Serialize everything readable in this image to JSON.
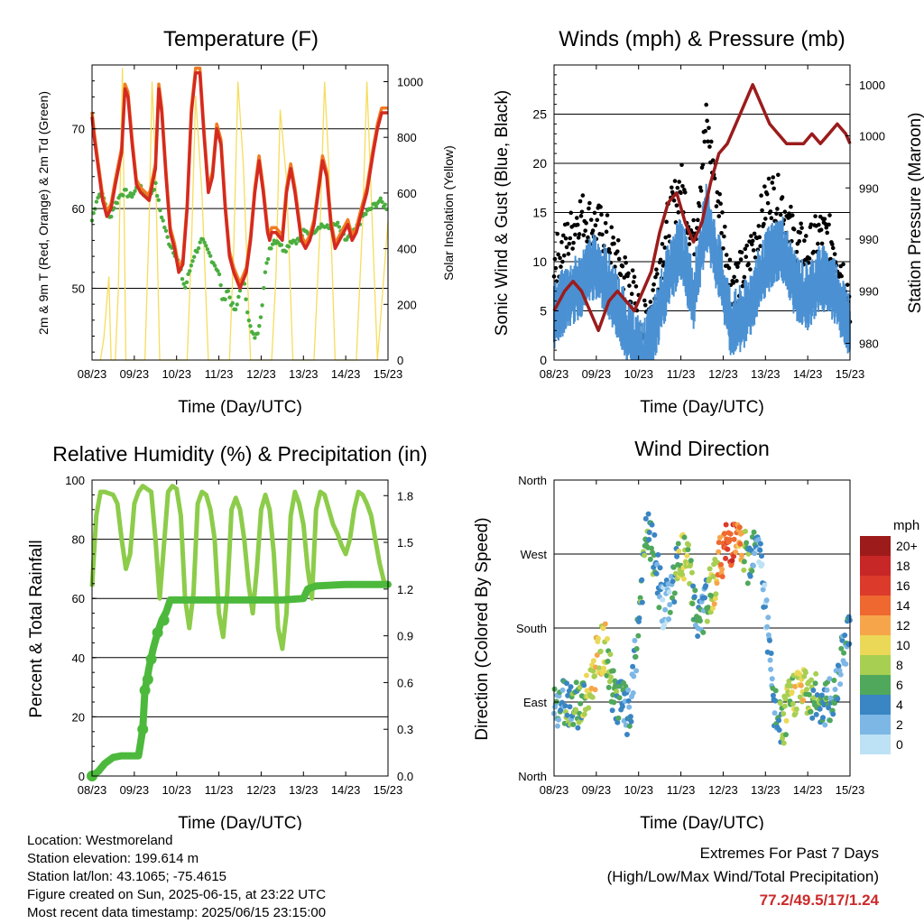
{
  "colors": {
    "temp2m": "#d42a20",
    "temp9m": "#f07c22",
    "dewpoint": "#4aae3f",
    "solar": "#f6dd5c",
    "wind": "#4b91d3",
    "gust": "#000000",
    "pressure": "#9b1c1c",
    "rh": "#8ccc4a",
    "precip": "#4cb93c"
  },
  "chart_data": [
    {
      "id": "temperature",
      "type": "line",
      "title": "Temperature (F)",
      "xlabel": "Time (Day/UTC)",
      "ylabel": "2m & 9m T (Red, Orange) & 2m Td (Green)",
      "y2label": "Solar Insolation (Yellow)",
      "x_ticks": [
        "08/23",
        "09/23",
        "10/23",
        "11/23",
        "12/23",
        "13/23",
        "14/23",
        "15/23"
      ],
      "y_ticks": [
        50,
        60,
        70
      ],
      "ylim": [
        41,
        78
      ],
      "y2_ticks": [
        0,
        200,
        400,
        600,
        800,
        1000
      ],
      "y2lim": [
        0,
        1060
      ],
      "grid": "horizontal",
      "series": [
        {
          "key": "temp2m",
          "x": [
            0,
            0.05,
            0.15,
            0.25,
            0.35,
            0.45,
            0.55,
            0.7,
            0.78,
            0.85,
            0.95,
            1.05,
            1.15,
            1.25,
            1.35,
            1.5,
            1.58,
            1.65,
            1.75,
            1.85,
            1.95,
            2.05,
            2.15,
            2.25,
            2.35,
            2.45,
            2.55,
            2.65,
            2.75,
            2.85,
            2.95,
            3.05,
            3.15,
            3.25,
            3.35,
            3.5,
            3.65,
            3.75,
            3.85,
            3.95,
            4.05,
            4.15,
            4.2,
            4.25,
            4.35,
            4.5,
            4.6,
            4.7,
            4.8,
            4.95,
            5.05,
            5.15,
            5.25,
            5.35,
            5.45,
            5.55,
            5.65,
            5.75,
            5.85,
            5.95,
            6.05,
            6.15,
            6.25,
            6.35,
            6.5,
            6.65,
            6.75,
            6.85,
            6.95,
            7.0
          ],
          "values": [
            71.5,
            69,
            65,
            61,
            59,
            60,
            63,
            67,
            75,
            74,
            68,
            63,
            62,
            61.5,
            61,
            65,
            75,
            72,
            64,
            57,
            55,
            52,
            53,
            60,
            72,
            77,
            77,
            69,
            62,
            64,
            70,
            68,
            60,
            54,
            52,
            50,
            52,
            56,
            62,
            66,
            62,
            57,
            56,
            57,
            57,
            56,
            62,
            65,
            62,
            56,
            55,
            56,
            58,
            62,
            66,
            64,
            58,
            55,
            56,
            57,
            58,
            56,
            57,
            59,
            62,
            67,
            70,
            72,
            72,
            72
          ]
        },
        {
          "key": "dewpoint",
          "x": [
            0,
            0.1,
            0.2,
            0.3,
            0.4,
            0.5,
            0.6,
            0.7,
            0.8,
            0.9,
            1.0,
            1.1,
            1.2,
            1.3,
            1.4,
            1.5,
            1.6,
            1.7,
            1.8,
            1.9,
            2.0,
            2.1,
            2.2,
            2.3,
            2.4,
            2.5,
            2.6,
            2.7,
            2.8,
            2.9,
            3.0,
            3.1,
            3.2,
            3.3,
            3.4,
            3.5,
            3.6,
            3.7,
            3.8,
            3.9,
            4.0,
            4.1,
            4.2,
            4.3,
            4.4,
            4.5,
            4.6,
            4.7,
            4.8,
            4.9,
            5.0,
            5.2,
            5.4,
            5.6,
            5.8,
            6.0,
            6.2,
            6.4,
            6.6,
            6.8,
            7.0
          ],
          "values": [
            58.5,
            61,
            62,
            61,
            58.5,
            60,
            61,
            62,
            62,
            61.5,
            62,
            63,
            62,
            61.5,
            62,
            63,
            60,
            58,
            56,
            55,
            54,
            52,
            50,
            52,
            54,
            55,
            56,
            55,
            54,
            53,
            52,
            48,
            50,
            48,
            47,
            50,
            51,
            46,
            44,
            44,
            47,
            52,
            55,
            56,
            56,
            55,
            55,
            56,
            56,
            56,
            57,
            57,
            58,
            57.5,
            58,
            56,
            57,
            59,
            60,
            61,
            60
          ]
        },
        {
          "key": "solar",
          "x": [
            0.05,
            0.2,
            0.28,
            0.4,
            0.45,
            0.55,
            0.62,
            0.7,
            0.72,
            0.8,
            0.9,
            1.05,
            1.25,
            1.35,
            1.42,
            1.5,
            1.6,
            1.75,
            2.05,
            2.25,
            2.35,
            2.45,
            2.6,
            2.75,
            3.05,
            3.25,
            3.35,
            3.45,
            3.58,
            3.75,
            4.05,
            4.25,
            4.35,
            4.45,
            4.6,
            4.75,
            5.05,
            5.25,
            5.4,
            5.5,
            5.6,
            5.75,
            6.05,
            6.25,
            6.4,
            6.5,
            6.6,
            6.75,
            7.0
          ],
          "values": [
            0,
            0,
            80,
            300,
            0,
            0,
            250,
            900,
            1050,
            0,
            0,
            0,
            0,
            500,
            1000,
            700,
            0,
            0,
            0,
            0,
            400,
            950,
            600,
            0,
            0,
            0,
            400,
            1000,
            700,
            0,
            0,
            0,
            300,
            900,
            650,
            0,
            0,
            0,
            500,
            1000,
            700,
            0,
            0,
            0,
            500,
            1000,
            600,
            0,
            500
          ]
        }
      ]
    },
    {
      "id": "winds",
      "type": "scatter",
      "title": "Winds (mph) & Pressure (mb)",
      "xlabel": "Time (Day/UTC)",
      "ylabel": "Sonic Wind & Gust (Blue, Black)",
      "y2label": "Station Pressure (Maroon)",
      "x_ticks": [
        "08/23",
        "09/23",
        "10/23",
        "11/23",
        "12/23",
        "13/23",
        "14/23",
        "15/23"
      ],
      "y_ticks": [
        0,
        5,
        10,
        15,
        20,
        25
      ],
      "ylim": [
        0,
        30
      ],
      "y2_tick_labels": [
        "980",
        "990",
        "990",
        "990",
        "1000",
        "1000"
      ],
      "y2_tick_y": [
        1.7,
        7.0,
        12.3,
        17.5,
        22.8,
        28.0
      ],
      "grid": "horizontal",
      "series": [
        {
          "key": "wind",
          "name": "Sonic Wind",
          "x": [
            0,
            0.3,
            0.6,
            0.9,
            1.2,
            1.5,
            1.8,
            2.1,
            2.4,
            2.7,
            3.0,
            3.3,
            3.6,
            3.9,
            4.2,
            4.5,
            4.8,
            5.1,
            5.4,
            5.7,
            6.0,
            6.3,
            6.6,
            6.9,
            7.0
          ],
          "values": [
            5,
            7,
            8,
            10,
            9,
            6,
            3,
            1,
            4,
            9,
            12,
            7,
            15,
            10,
            4,
            5,
            8,
            11,
            12,
            8,
            7,
            9,
            8,
            5,
            4
          ]
        },
        {
          "key": "gust",
          "name": "Gust",
          "x": [
            0,
            0.3,
            0.6,
            0.9,
            1.2,
            1.5,
            1.8,
            2.1,
            2.4,
            2.7,
            3.0,
            3.3,
            3.6,
            3.9,
            4.2,
            4.5,
            4.8,
            5.1,
            5.4,
            5.7,
            6.0,
            6.3,
            6.6,
            6.9,
            7.0
          ],
          "values": [
            10,
            12,
            15,
            14,
            13,
            10,
            8,
            3,
            8,
            14,
            18,
            12,
            24,
            16,
            8,
            9,
            13,
            17,
            16,
            12,
            11,
            13,
            12,
            8,
            6
          ]
        },
        {
          "key": "pressure",
          "name": "Station Pressure",
          "x": [
            0,
            0.25,
            0.45,
            0.65,
            0.85,
            1.05,
            1.3,
            1.5,
            1.7,
            1.9,
            2.1,
            2.3,
            2.5,
            2.7,
            2.9,
            3.1,
            3.3,
            3.5,
            3.7,
            3.9,
            4.1,
            4.3,
            4.5,
            4.7,
            4.9,
            5.1,
            5.3,
            5.5,
            5.7,
            5.9,
            6.1,
            6.3,
            6.5,
            6.7,
            6.9,
            7.0
          ],
          "values": [
            5,
            7,
            8,
            7,
            5,
            3,
            6,
            7,
            6,
            5,
            7,
            9,
            13,
            16,
            17,
            14,
            12,
            14,
            18,
            21,
            22,
            24,
            26,
            28,
            26,
            24,
            23,
            22,
            22,
            22,
            23,
            22,
            23,
            24,
            23,
            22
          ]
        }
      ]
    },
    {
      "id": "humidity",
      "type": "line",
      "title": "Relative Humidity (%) & Precipitation (in)",
      "xlabel": "Time (Day/UTC)",
      "ylabel": "Percent & Total Rainfall",
      "x_ticks": [
        "08/23",
        "09/23",
        "10/23",
        "11/23",
        "12/23",
        "13/23",
        "14/23",
        "15/23"
      ],
      "y_ticks": [
        0,
        20,
        40,
        60,
        80,
        100
      ],
      "ylim": [
        0,
        100
      ],
      "y2_ticks": [
        "0.0",
        "0.3",
        "0.6",
        "0.9",
        "1.2",
        "1.5",
        "1.8"
      ],
      "y2lim": [
        0,
        1.9
      ],
      "grid": "horizontal",
      "series": [
        {
          "key": "rh",
          "name": "Relative Humidity",
          "x": [
            0,
            0.1,
            0.2,
            0.3,
            0.5,
            0.6,
            0.7,
            0.8,
            0.9,
            1.0,
            1.1,
            1.2,
            1.3,
            1.4,
            1.5,
            1.6,
            1.7,
            1.8,
            1.9,
            2.0,
            2.1,
            2.2,
            2.3,
            2.4,
            2.5,
            2.6,
            2.7,
            2.8,
            2.9,
            3.0,
            3.1,
            3.2,
            3.3,
            3.4,
            3.5,
            3.6,
            3.7,
            3.8,
            3.9,
            4.0,
            4.1,
            4.2,
            4.3,
            4.4,
            4.5,
            4.6,
            4.7,
            4.8,
            4.9,
            5.0,
            5.1,
            5.2,
            5.3,
            5.4,
            5.5,
            5.6,
            5.7,
            5.8,
            5.9,
            6.0,
            6.1,
            6.2,
            6.3,
            6.4,
            6.5,
            6.6,
            6.7,
            6.8,
            6.9,
            7.0
          ],
          "values": [
            64,
            88,
            96,
            96,
            95,
            92,
            80,
            70,
            75,
            92,
            96,
            98,
            97,
            96,
            80,
            60,
            78,
            96,
            98,
            97,
            88,
            60,
            50,
            62,
            92,
            96,
            95,
            90,
            80,
            55,
            47,
            62,
            90,
            94,
            90,
            80,
            65,
            55,
            70,
            90,
            95,
            90,
            75,
            50,
            43,
            55,
            88,
            96,
            92,
            85,
            70,
            60,
            90,
            96,
            95,
            90,
            85,
            82,
            78,
            75,
            80,
            90,
            96,
            95,
            92,
            88,
            80,
            72,
            66,
            64
          ]
        },
        {
          "key": "precip",
          "name": "Total Precipitation",
          "x": [
            0,
            0.15,
            0.3,
            0.5,
            0.7,
            0.9,
            1.1,
            1.2,
            1.25,
            1.3,
            1.35,
            1.45,
            1.55,
            1.65,
            1.75,
            1.85,
            2.0,
            2.5,
            3.0,
            3.5,
            4.0,
            4.5,
            5.0,
            5.1,
            5.3,
            6.0,
            6.5,
            7.0
          ],
          "values": [
            0,
            0.03,
            0.08,
            0.12,
            0.13,
            0.13,
            0.13,
            0.3,
            0.55,
            0.62,
            0.7,
            0.82,
            0.92,
            1.0,
            1.05,
            1.13,
            1.13,
            1.13,
            1.13,
            1.13,
            1.13,
            1.13,
            1.14,
            1.2,
            1.22,
            1.23,
            1.23,
            1.23
          ]
        }
      ]
    },
    {
      "id": "wind_direction",
      "type": "scatter",
      "title": "Wind Direction",
      "xlabel": "Time (Day/UTC)",
      "ylabel": "Direction (Colored By Speed)",
      "x_ticks": [
        "08/23",
        "09/23",
        "10/23",
        "11/23",
        "12/23",
        "13/23",
        "14/23",
        "15/23"
      ],
      "y_tick_labels": [
        "North",
        "East",
        "South",
        "West",
        "North"
      ],
      "y_ticks": [
        0,
        90,
        180,
        270,
        360
      ],
      "ylim": [
        0,
        360
      ],
      "grid": "horizontal",
      "legend": {
        "title": "mph",
        "labels": [
          "20+",
          "18",
          "16",
          "14",
          "12",
          "10",
          "8",
          "6",
          "4",
          "2",
          "0"
        ],
        "colors": [
          "#9e1b1b",
          "#c72726",
          "#dc3b2b",
          "#ef6830",
          "#f7a54a",
          "#ecd857",
          "#a7cf52",
          "#4fa85b",
          "#3a85c3",
          "#7db7e6",
          "#bde1f5"
        ]
      },
      "series": [
        {
          "name": "Direction",
          "x": [
            0,
            0.3,
            0.6,
            0.8,
            1.0,
            1.2,
            1.4,
            1.6,
            1.8,
            2.0,
            2.2,
            2.4,
            2.6,
            2.8,
            3.0,
            3.2,
            3.4,
            3.6,
            3.8,
            4.0,
            4.2,
            4.4,
            4.6,
            4.8,
            5.0,
            5.2,
            5.4,
            5.6,
            5.8,
            6.0,
            6.2,
            6.4,
            6.6,
            6.8,
            7.0
          ],
          "values": [
            90,
            92,
            88,
            95,
            140,
            160,
            100,
            90,
            70,
            190,
            300,
            260,
            200,
            230,
            270,
            255,
            180,
            210,
            240,
            275,
            285,
            280,
            260,
            300,
            210,
            80,
            60,
            95,
            110,
            100,
            95,
            88,
            90,
            150,
            180
          ],
          "speeds": [
            4,
            5,
            6,
            8,
            10,
            9,
            6,
            5,
            3,
            5,
            7,
            4,
            2,
            3,
            9,
            8,
            4,
            5,
            10,
            14,
            16,
            12,
            6,
            3,
            2,
            4,
            6,
            9,
            10,
            8,
            6,
            5,
            4,
            4,
            3
          ]
        }
      ]
    }
  ],
  "info": {
    "location": "Location: Westmoreland",
    "elevation": "Station elevation: 199.614 m",
    "latlon": "Station lat/lon: 43.1065; -75.4615",
    "created": "Figure created on Sun, 2025-06-15, at 23:22 UTC",
    "timestamp": "Most recent data timestamp: 2025/06/15 23:15:00"
  },
  "extremes": {
    "title": "Extremes For Past 7 Days",
    "subtitle": "(High/Low/Max Wind/Total Precipitation)",
    "values": "77.2/49.5/17/1.24"
  }
}
